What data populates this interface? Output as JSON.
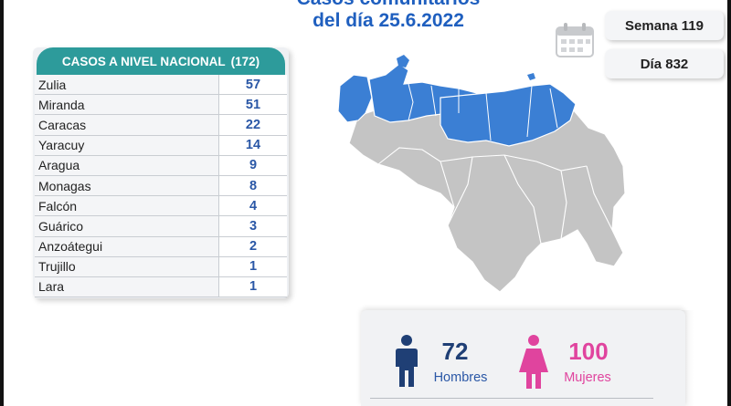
{
  "header": {
    "title_partial": "Casos comunitarios",
    "title_date": "del día 25.6.2022"
  },
  "info": {
    "week": "Semana 119",
    "day": "Día 832"
  },
  "table": {
    "heading": "CASOS A NIVEL NACIONAL",
    "total": "(172)",
    "rows": [
      {
        "name": "Zulia",
        "value": "57"
      },
      {
        "name": "Miranda",
        "value": "51"
      },
      {
        "name": "Caracas",
        "value": "22"
      },
      {
        "name": "Yaracuy",
        "value": "14"
      },
      {
        "name": "Aragua",
        "value": "9"
      },
      {
        "name": "Monagas",
        "value": "8"
      },
      {
        "name": "Falcón",
        "value": "4"
      },
      {
        "name": "Guárico",
        "value": "3"
      },
      {
        "name": "Anzoátegui",
        "value": "2"
      },
      {
        "name": "Trujillo",
        "value": "1"
      },
      {
        "name": "Lara",
        "value": "1"
      }
    ]
  },
  "gender": {
    "male_count": "72",
    "male_label": "Hombres",
    "female_count": "100",
    "female_label": "Mujeres"
  },
  "map": {
    "icon": "venezuela-map",
    "highlight_color": "#3b7fd4",
    "base_color": "#c4c4c4"
  },
  "colors": {
    "title": "#1f5fbf",
    "table_header": "#2d9b9b",
    "value_text": "#2a57a6",
    "male": "#1f3f75",
    "female": "#e0449e"
  }
}
